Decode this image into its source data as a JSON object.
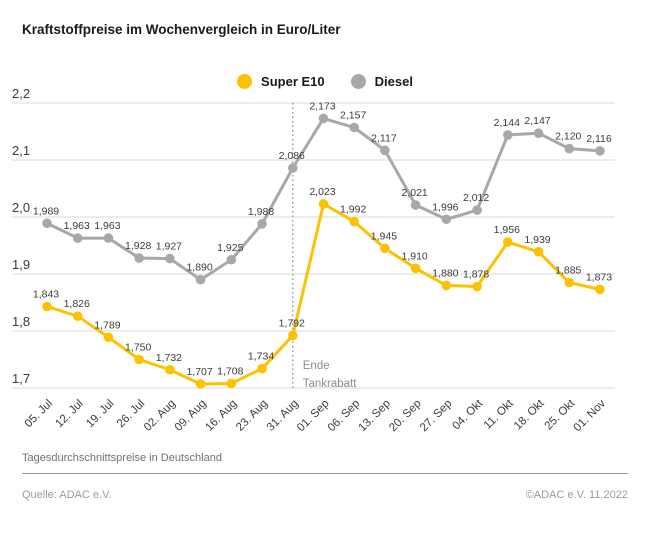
{
  "title": "Kraftstoffpreise im Wochenvergleich in Euro/Liter",
  "legend": [
    {
      "label": "Super E10",
      "color": "#fcc200"
    },
    {
      "label": "Diesel",
      "color": "#a8a8a8"
    }
  ],
  "footer": {
    "note": "Tagesdurchschnittspreise in Deutschland",
    "source": "Quelle: ADAC e.V.",
    "copyright": "©ADAC e.V.  11.2022"
  },
  "colors": {
    "super_e10": "#fcc200",
    "diesel": "#a8a8a8",
    "grid": "#d9d9d9",
    "axis_text": "#3c3c3c",
    "value_label_text": "#3c3c3c",
    "annotation_text": "#8c8c8c",
    "divider": "#8c8c8c"
  },
  "chart_data": {
    "type": "line",
    "title": "Kraftstoffpreise im Wochenvergleich in Euro/Liter",
    "xlabel": "",
    "ylabel": "Euro/Liter",
    "ylim": [
      1.7,
      2.2
    ],
    "y_ticks": [
      2.2,
      2.1,
      2.0,
      1.9,
      1.8,
      1.7
    ],
    "grid": true,
    "legend_position": "top-center",
    "categories": [
      "05. Jul",
      "12. Jul",
      "19. Jul",
      "26. Jul",
      "02. Aug",
      "09. Aug",
      "16. Aug",
      "23. Aug",
      "31. Aug",
      "01. Sep",
      "06. Sep",
      "13. Sep",
      "20. Sep",
      "27. Sep",
      "04. Okt",
      "11. Okt",
      "18. Okt",
      "25. Okt",
      "01. Nov"
    ],
    "series": [
      {
        "name": "Diesel",
        "color": "#a8a8a8",
        "values": [
          1.989,
          1.963,
          1.963,
          1.928,
          1.927,
          1.89,
          1.925,
          1.988,
          2.086,
          2.173,
          2.157,
          2.117,
          2.021,
          1.996,
          2.012,
          2.144,
          2.147,
          2.12,
          2.116
        ]
      },
      {
        "name": "Super E10",
        "color": "#fcc200",
        "values": [
          1.843,
          1.826,
          1.789,
          1.75,
          1.732,
          1.707,
          1.708,
          1.734,
          1.792,
          2.023,
          1.992,
          1.945,
          1.91,
          1.88,
          1.878,
          1.956,
          1.939,
          1.885,
          1.873
        ]
      }
    ],
    "annotation": {
      "lines": [
        "Ende",
        "Tankrabatt"
      ],
      "x_index": 8
    }
  }
}
